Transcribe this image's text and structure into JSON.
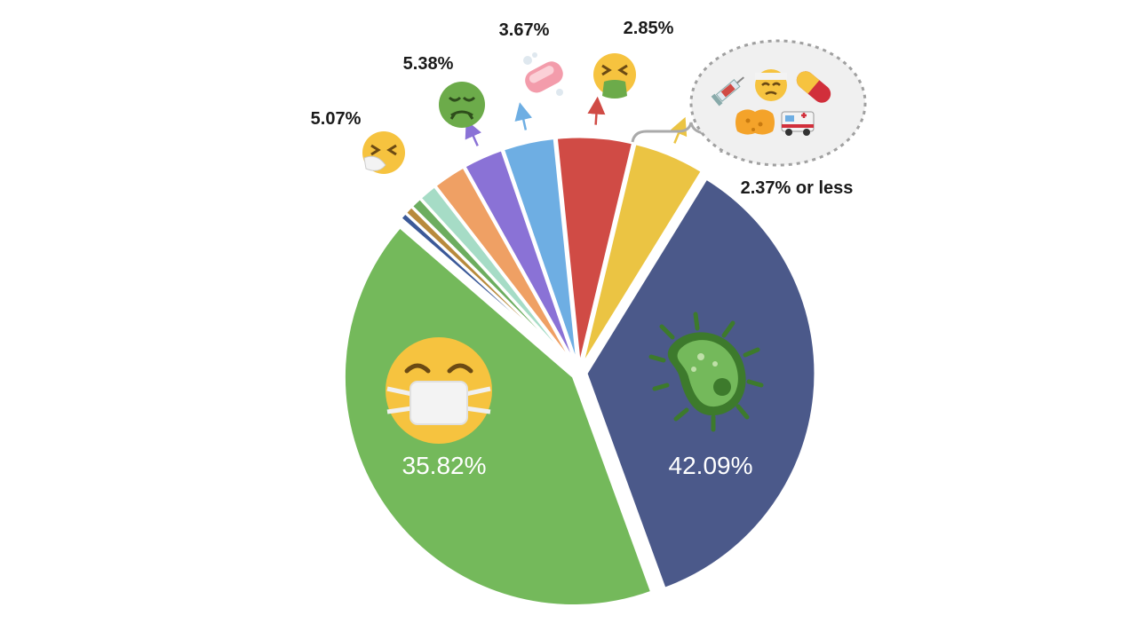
{
  "chart_data": {
    "type": "pie",
    "title": "",
    "slices": [
      {
        "label": "",
        "value": 42.09,
        "label_text": "42.09%",
        "color": "#74b95b",
        "icon": "microbe-icon"
      },
      {
        "label": "",
        "value": 0.5,
        "label_text": "",
        "color": "#3b5998",
        "icon": ""
      },
      {
        "label": "",
        "value": 0.6,
        "label_text": "",
        "color": "#b88a3c",
        "icon": ""
      },
      {
        "label": "",
        "value": 0.8,
        "label_text": "",
        "color": "#6cad5f",
        "icon": ""
      },
      {
        "label": "",
        "value": 1.3,
        "label_text": "",
        "color": "#a6dcc6",
        "icon": ""
      },
      {
        "label": "",
        "value": 2.37,
        "label_text": "",
        "color": "#efa064",
        "icon": ""
      },
      {
        "label": "",
        "value": 2.85,
        "label_text": "2.85%",
        "color": "#8a72d6",
        "icon": "vomiting-face-icon"
      },
      {
        "label": "",
        "value": 3.67,
        "label_text": "3.67%",
        "color": "#6eaee3",
        "icon": "soap-icon"
      },
      {
        "label": "",
        "value": 5.38,
        "label_text": "5.38%",
        "color": "#d04b45",
        "icon": "nauseated-face-icon"
      },
      {
        "label": "",
        "value": 5.07,
        "label_text": "5.07%",
        "color": "#ebc443",
        "icon": "sneezing-face-icon"
      },
      {
        "label": "",
        "value": 35.82,
        "label_text": "35.82%",
        "color": "#4b598a",
        "icon": "medical-mask-face-icon"
      }
    ],
    "group_label": "2.37% or less",
    "group_icons": [
      "syringe-icon",
      "bandaged-face-icon",
      "pill-icon",
      "sponge-icon",
      "ambulance-icon"
    ]
  }
}
